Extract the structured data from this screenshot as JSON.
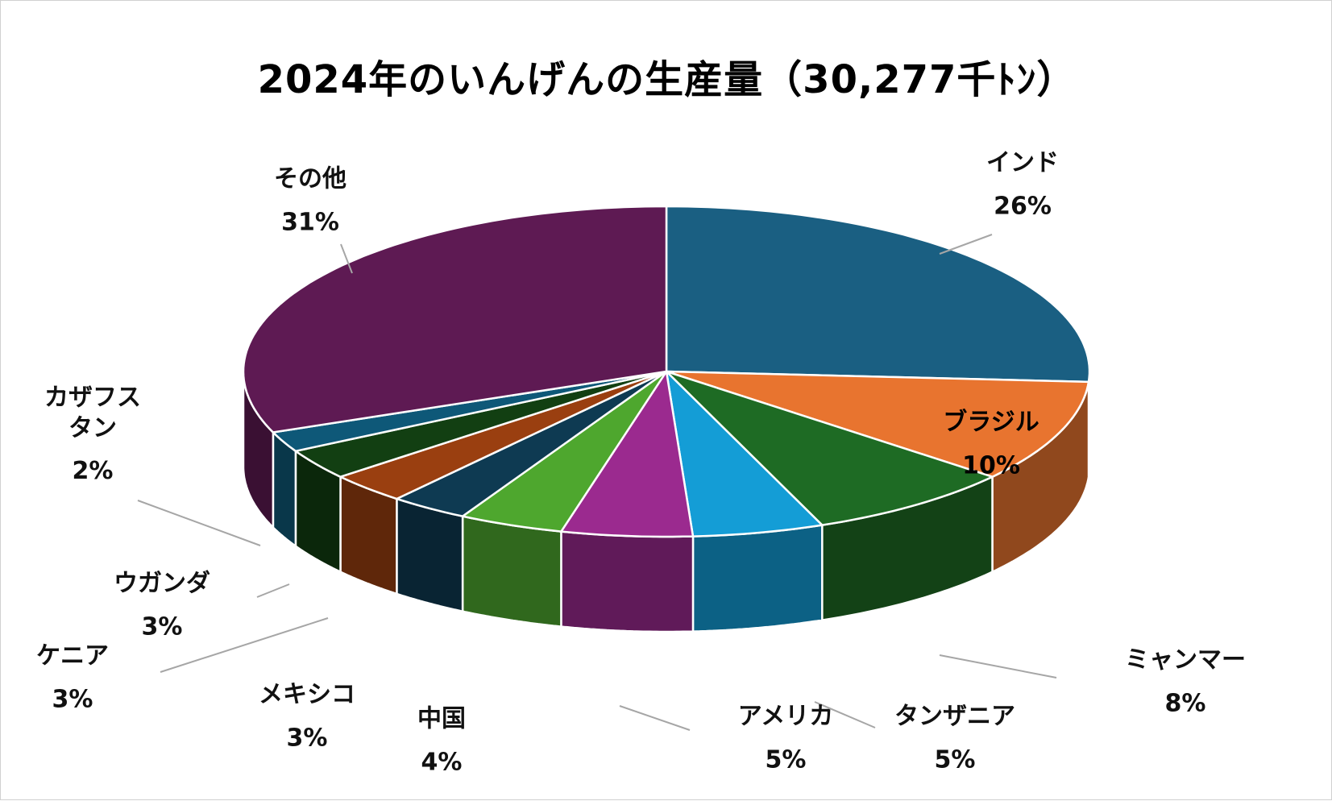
{
  "chart_data": {
    "type": "pie",
    "title": "2024年のいんげんの生産量（30,277千ﾄﾝ）",
    "slices": [
      {
        "name": "インド",
        "pct_label": "26%",
        "value": 26,
        "color": "#1a5f82"
      },
      {
        "name": "ブラジル",
        "pct_label": "10%",
        "value": 10,
        "color": "#e8742f"
      },
      {
        "name": "ミャンマー",
        "pct_label": "8%",
        "value": 8,
        "color": "#1e6b24"
      },
      {
        "name": "タンザニア",
        "pct_label": "5%",
        "value": 5,
        "color": "#149dd6"
      },
      {
        "name": "アメリカ",
        "pct_label": "5%",
        "value": 5,
        "color": "#9b2a8f"
      },
      {
        "name": "中国",
        "pct_label": "4%",
        "value": 4,
        "color": "#4ea72e"
      },
      {
        "name": "メキシコ",
        "pct_label": "3%",
        "value": 3,
        "color": "#0e3a52"
      },
      {
        "name": "ケニア",
        "pct_label": "3%",
        "value": 3,
        "color": "#9a3f10"
      },
      {
        "name": "ウガンダ",
        "pct_label": "3%",
        "value": 3,
        "color": "#123f12"
      },
      {
        "name": "カザフスタン",
        "pct_label": "2%",
        "value": 2,
        "color": "#0e5878"
      },
      {
        "name": "その他",
        "pct_label": "31%",
        "value": 31,
        "color": "#5e1a53"
      }
    ],
    "legend": "none"
  }
}
